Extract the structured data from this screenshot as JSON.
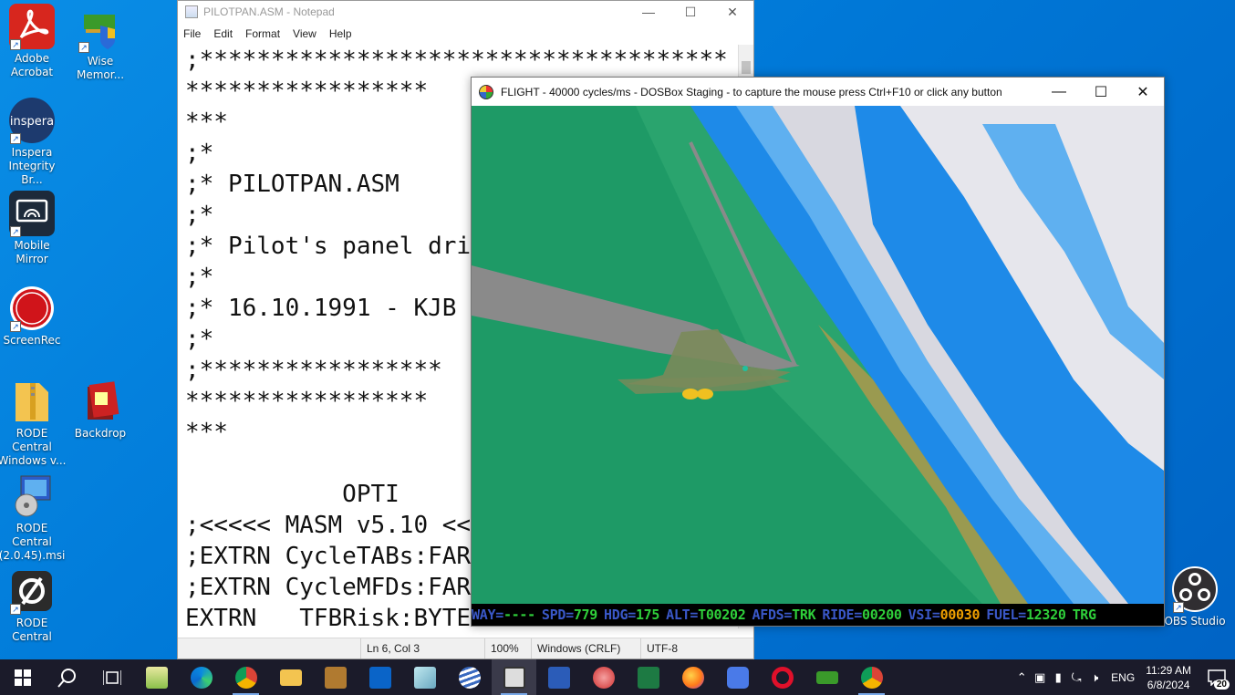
{
  "desktop": {
    "icons": [
      {
        "label": "Adobe\nAcrobat"
      },
      {
        "label": "Wise\nMemor..."
      },
      {
        "label": "Inspera\nIntegrity Br...",
        "logo_text": "inspera"
      },
      {
        "label": "Mobile\nMirror"
      },
      {
        "label": "ScreenRec"
      },
      {
        "label": "RODE Central\nWindows v..."
      },
      {
        "label": "Backdrop"
      },
      {
        "label": "RODE Central\n(2.0.45).msi"
      },
      {
        "label": "RODE Central"
      },
      {
        "label": "OBS Studio"
      }
    ]
  },
  "notepad": {
    "title": "PILOTPAN.ASM - Notepad",
    "menu": [
      "File",
      "Edit",
      "Format",
      "View",
      "Help"
    ],
    "lines": [
      ";*************************************",
      "*****************",
      "***",
      ";*",
      ";* PILOTPAN.ASM",
      ";*",
      ";* Pilot's panel dri",
      ";*",
      ";* 16.10.1991 - KJB",
      ";*",
      ";*****************",
      "*****************",
      "***",
      "",
      "           OPTI",
      ";<<<<< MASM v5.10 <<",
      ";EXTRN CycleTABs:FAR",
      ";EXTRN CycleMFDs:FAR",
      "EXTRN   TFBRisk:BYTE"
    ],
    "status": {
      "position": "Ln 6, Col 3",
      "zoom": "100%",
      "line_ending": "Windows (CRLF)",
      "encoding": "UTF-8"
    }
  },
  "dosbox": {
    "title": "FLIGHT - 40000 cycles/ms - DOSBox Staging - to capture the mouse press Ctrl+F10 or click any button",
    "hud": [
      {
        "label": "WAY=",
        "value": "----"
      },
      {
        "label": "SPD=",
        "value": "779"
      },
      {
        "label": "HDG=",
        "value": "175"
      },
      {
        "label": "ALT=",
        "value": "T00202"
      },
      {
        "label": "AFDS=",
        "value": "TRK"
      },
      {
        "label": "RIDE=",
        "value": "00200"
      },
      {
        "label": "VSI=",
        "value": "00030",
        "alert": true
      },
      {
        "label": "FUEL=",
        "value": "12320"
      },
      {
        "label": "",
        "value": "TRG"
      }
    ]
  },
  "taskbar": {
    "language": "ENG",
    "time": "11:29 AM",
    "date": "6/8/2024",
    "notifications": "20"
  },
  "colors": {
    "desktop": "#0078d7",
    "terrain_green": "#1e9a66",
    "sky_blue": "#1e8ae8",
    "hud_label": "#3a58c8",
    "hud_value": "#2fcf3a",
    "hud_alert": "#f0a000"
  }
}
